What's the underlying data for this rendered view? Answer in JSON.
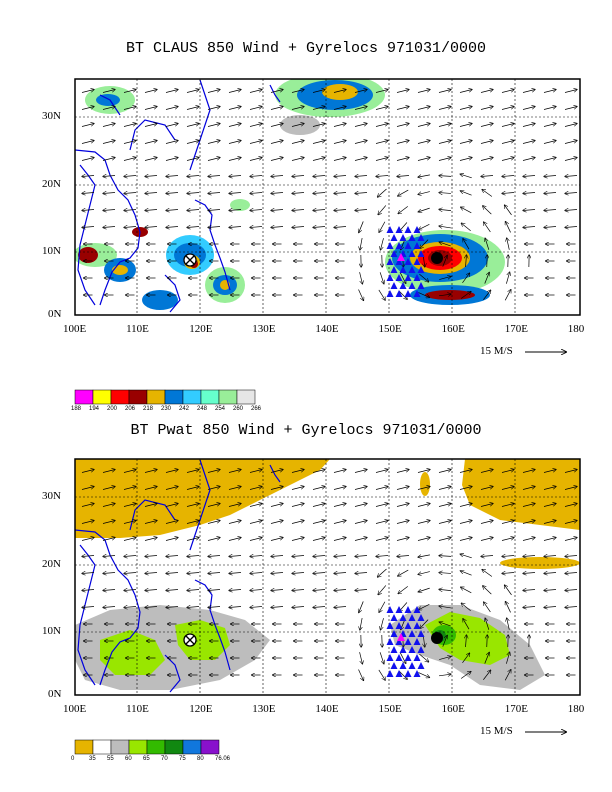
{
  "panel1": {
    "title": "BT CLAUS 850 Wind + Gyrelocs 971031/0000",
    "lat_labels": [
      "30N",
      "20N",
      "10N",
      "0N"
    ],
    "lon_labels": [
      "100E",
      "110E",
      "120E",
      "130E",
      "140E",
      "150E",
      "160E",
      "170E",
      "180"
    ],
    "scale_text": "15 M/S",
    "legend_labels": [
      "188",
      "194",
      "200",
      "206",
      "218",
      "230",
      "242",
      "248",
      "254",
      "260",
      "266"
    ],
    "legend_colors": [
      "#ff00ff",
      "#ffff00",
      "#ff0000",
      "#990000",
      "#e6b400",
      "#0077d6",
      "#33ccff",
      "#66ffcc",
      "#99ee99",
      "#e6e6e6"
    ]
  },
  "panel2": {
    "title": "BT Pwat 850 Wind + Gyrelocs 971031/0000",
    "lat_labels": [
      "30N",
      "20N",
      "10N",
      "0N"
    ],
    "lon_labels": [
      "100E",
      "110E",
      "120E",
      "130E",
      "140E",
      "150E",
      "160E",
      "170E",
      "180"
    ],
    "scale_text": "15 M/S",
    "legend_labels": [
      "0",
      "35",
      "55",
      "60",
      "65",
      "70",
      "75",
      "80",
      "76.06"
    ],
    "legend_colors": [
      "#e6b400",
      "#ffffff",
      "#bdbdbd",
      "#99e600",
      "#33bb00",
      "#118811",
      "#1177dd",
      "#8811cc"
    ]
  },
  "colors": {
    "coast": "#0000dd",
    "gyre_triangle": "#1111ee",
    "gyre_center": "#ff00ff"
  }
}
